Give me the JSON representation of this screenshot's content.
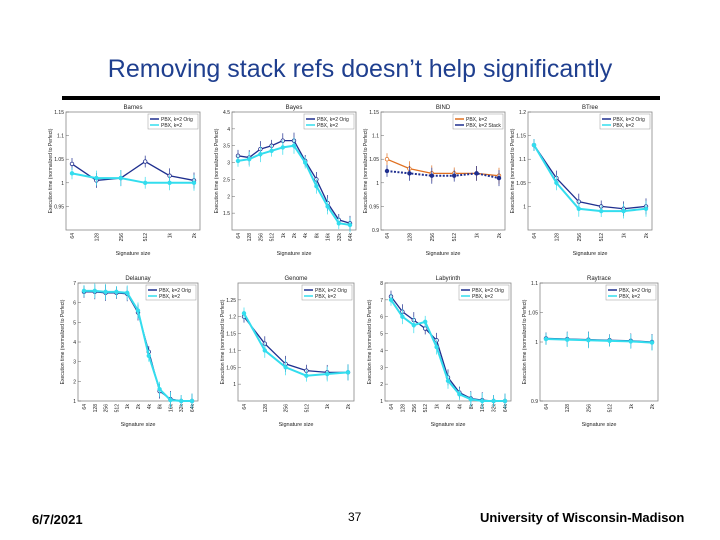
{
  "slide": {
    "title": "Removing stack refs doesn’t help significantly",
    "date": "6/7/2021",
    "page": "37",
    "institution": "University of Wisconsin-Madison"
  },
  "colors": {
    "dark": "#1f2f8f",
    "light": "#33ddee",
    "orange": "#e07020"
  },
  "chart_data": [
    {
      "type": "line",
      "title": "Barnes",
      "xlabel": "Signature size",
      "ylabel": "Execution time (normalized to Perfect)",
      "categories": [
        "64",
        "128",
        "256",
        "512",
        "1k",
        "2k"
      ],
      "ylim": [
        0.9,
        1.15
      ],
      "yticks": [
        "0.95",
        "1",
        "1.05",
        "1.1",
        "1.15"
      ],
      "legend": [
        "PBX, k=2 Orig",
        "PBX, k=2"
      ],
      "series": [
        {
          "name": "PBX, k=2 Orig",
          "values": [
            1.04,
            1.005,
            1.01,
            1.045,
            1.015,
            1.005
          ]
        },
        {
          "name": "PBX, k=2",
          "values": [
            1.02,
            1.01,
            1.01,
            1.0,
            1.0,
            1.0
          ]
        }
      ]
    },
    {
      "type": "line",
      "title": "Bayes",
      "xlabel": "Signature size",
      "ylabel": "Execution time (normalized to Perfect)",
      "categories": [
        "64",
        "128",
        "256",
        "512",
        "1k",
        "2k",
        "4k",
        "8k",
        "16k",
        "32k",
        "64k"
      ],
      "ylim": [
        1.0,
        4.5
      ],
      "yticks": [
        "1.5",
        "2",
        "2.5",
        "3",
        "3.5",
        "4",
        "4.5"
      ],
      "legend": [
        "PBX, k=2 Orig",
        "PBX, k=2"
      ],
      "series": [
        {
          "name": "PBX, k=2 Orig",
          "values": [
            3.2,
            3.15,
            3.4,
            3.5,
            3.65,
            3.65,
            3.05,
            2.5,
            1.8,
            1.3,
            1.2
          ]
        },
        {
          "name": "PBX, k=2",
          "values": [
            3.05,
            3.1,
            3.25,
            3.35,
            3.45,
            3.5,
            3.0,
            2.3,
            1.7,
            1.2,
            1.15
          ]
        }
      ]
    },
    {
      "type": "line",
      "title": "BIND",
      "xlabel": "Signature size",
      "ylabel": "Execution time (normalized to Perfect)",
      "categories": [
        "64",
        "128",
        "256",
        "512",
        "1k",
        "2k"
      ],
      "ylim": [
        0.9,
        1.15
      ],
      "yticks": [
        "0.9",
        "0.95",
        "1",
        "1.05",
        "1.1",
        "1.15"
      ],
      "legend": [
        "PBX, k=2",
        "PBX, k=2 Stack"
      ],
      "series": [
        {
          "name": "PBX, k=2",
          "values": [
            1.05,
            1.03,
            1.02,
            1.02,
            1.02,
            1.015
          ]
        },
        {
          "name": "PBX, k=2 Stack",
          "values": [
            1.025,
            1.02,
            1.015,
            1.015,
            1.02,
            1.01
          ]
        }
      ]
    },
    {
      "type": "line",
      "title": "BTree",
      "xlabel": "Signature size",
      "ylabel": "Execution time (normalized to Perfect)",
      "categories": [
        "64",
        "128",
        "256",
        "512",
        "1k",
        "2k"
      ],
      "ylim": [
        0.95,
        1.2
      ],
      "yticks": [
        "1",
        "1.05",
        "1.1",
        "1.15",
        "1.2"
      ],
      "legend": [
        "PBX, k=2 Orig",
        "PBX, k=2"
      ],
      "series": [
        {
          "name": "PBX, k=2 Orig",
          "values": [
            1.13,
            1.06,
            1.01,
            1.0,
            0.995,
            1.0
          ]
        },
        {
          "name": "PBX, k=2",
          "values": [
            1.13,
            1.05,
            0.995,
            0.99,
            0.99,
            0.995
          ]
        }
      ]
    },
    {
      "type": "line",
      "title": "Delaunay",
      "xlabel": "Signature size",
      "ylabel": "Execution time (normalized to Perfect)",
      "categories": [
        "64",
        "128",
        "256",
        "512",
        "1k",
        "2k",
        "4k",
        "8k",
        "16k",
        "32k",
        "64k"
      ],
      "ylim": [
        1.0,
        7.0
      ],
      "yticks": [
        "1",
        "2",
        "3",
        "4",
        "5",
        "6",
        "7"
      ],
      "legend": [
        "PBX, k=2 Orig",
        "PBX, k=2"
      ],
      "series": [
        {
          "name": "PBX, k=2 Orig",
          "values": [
            6.55,
            6.55,
            6.5,
            6.5,
            6.45,
            5.5,
            3.5,
            1.5,
            1.1,
            1.0,
            1.0
          ]
        },
        {
          "name": "PBX, k=2",
          "values": [
            6.6,
            6.6,
            6.55,
            6.55,
            6.5,
            5.6,
            3.3,
            1.6,
            1.05,
            1.0,
            1.0
          ]
        }
      ]
    },
    {
      "type": "line",
      "title": "Genome",
      "xlabel": "Signature size",
      "ylabel": "Execution time (normalized to Perfect)",
      "categories": [
        "64",
        "128",
        "256",
        "512",
        "1k",
        "2k"
      ],
      "ylim": [
        0.95,
        1.3
      ],
      "yticks": [
        "1",
        "1.05",
        "1.1",
        "1.15",
        "1.2",
        "1.25"
      ],
      "legend": [
        "PBX, k=2 Orig",
        "PBX, k=2"
      ],
      "series": [
        {
          "name": "PBX, k=2 Orig",
          "values": [
            1.2,
            1.12,
            1.06,
            1.04,
            1.035,
            1.035
          ]
        },
        {
          "name": "PBX, k=2",
          "values": [
            1.21,
            1.1,
            1.05,
            1.025,
            1.03,
            1.035
          ]
        }
      ]
    },
    {
      "type": "line",
      "title": "Labyrinth",
      "xlabel": "Signature size",
      "ylabel": "Execution time (normalized to Perfect)",
      "categories": [
        "64",
        "128",
        "256",
        "512",
        "1k",
        "2k",
        "4k",
        "8k",
        "16k",
        "32k",
        "64k"
      ],
      "ylim": [
        1.0,
        8.0
      ],
      "yticks": [
        "1",
        "2",
        "3",
        "4",
        "5",
        "6",
        "7",
        "8"
      ],
      "legend": [
        "PBX, k=2 Orig",
        "PBX, k=2"
      ],
      "series": [
        {
          "name": "PBX, k=2 Orig",
          "values": [
            7.2,
            6.3,
            5.8,
            5.3,
            4.6,
            2.4,
            1.5,
            1.15,
            1.05,
            1.0,
            1.0
          ]
        },
        {
          "name": "PBX, k=2",
          "values": [
            7.0,
            6.0,
            5.5,
            5.7,
            4.2,
            2.2,
            1.4,
            1.1,
            1.0,
            1.0,
            1.0
          ]
        }
      ]
    },
    {
      "type": "line",
      "title": "Raytrace",
      "xlabel": "Signature size",
      "ylabel": "Execution time (normalized to Perfect)",
      "categories": [
        "64",
        "128",
        "256",
        "512",
        "1k",
        "2k"
      ],
      "ylim": [
        0.9,
        1.1
      ],
      "yticks": [
        "0.9",
        "1",
        "1.05",
        "1.1"
      ],
      "legend": [
        "PBX, k=2 Orig",
        "PBX, k=2"
      ],
      "series": [
        {
          "name": "PBX, k=2 Orig",
          "values": [
            1.006,
            1.005,
            1.004,
            1.003,
            1.002,
            1.0
          ]
        },
        {
          "name": "PBX, k=2",
          "values": [
            1.005,
            1.004,
            1.003,
            1.002,
            1.001,
            0.999
          ]
        }
      ]
    }
  ]
}
